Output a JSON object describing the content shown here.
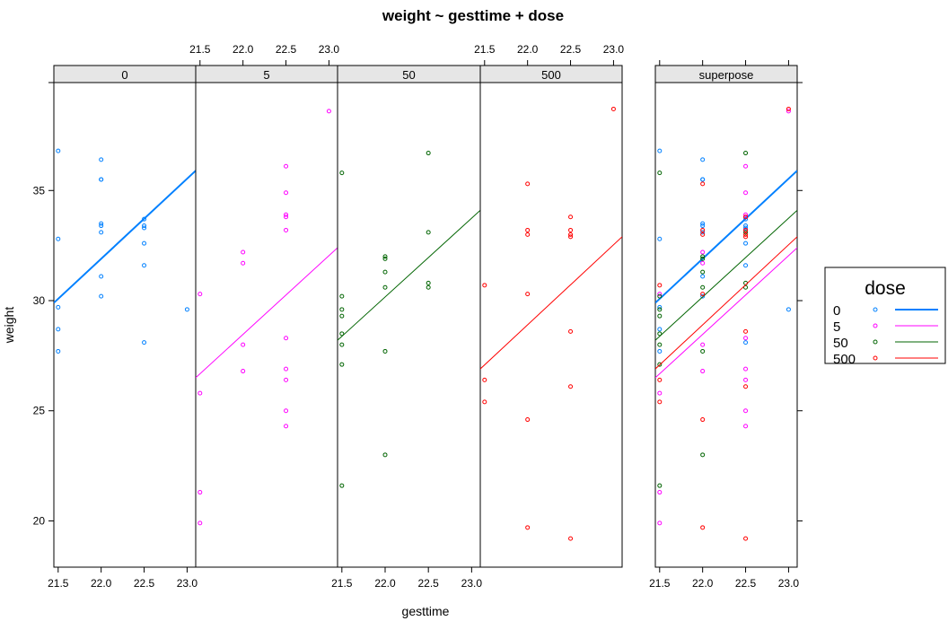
{
  "chart_data": {
    "type": "scatter",
    "title": "weight ~ gesttime + dose",
    "xlabel": "gesttime",
    "ylabel": "weight",
    "xlim": [
      21.45,
      23.1
    ],
    "ylim": [
      17.9,
      39.9
    ],
    "x_ticks": [
      21.5,
      22.0,
      22.5,
      23.0
    ],
    "x_tick_labels": [
      "21.5",
      "22.0",
      "22.5",
      "23.0"
    ],
    "y_ticks": [
      20,
      25,
      30,
      35
    ],
    "y_tick_labels": [
      "20",
      "25",
      "30",
      "35"
    ],
    "panels": [
      "0",
      "5",
      "50",
      "500"
    ],
    "superpose_label": "superpose",
    "legend": {
      "title": "dose",
      "position": "right"
    },
    "series": [
      {
        "name": "0",
        "color": "#0080ff",
        "line_width": 2,
        "fit": {
          "x": [
            21.45,
            23.1
          ],
          "y": [
            29.9,
            35.9
          ]
        },
        "points": [
          [
            21.5,
            36.8
          ],
          [
            21.5,
            32.8
          ],
          [
            21.5,
            29.7
          ],
          [
            21.5,
            28.7
          ],
          [
            21.5,
            27.7
          ],
          [
            22.0,
            36.4
          ],
          [
            22.0,
            35.5
          ],
          [
            22.0,
            35.5
          ],
          [
            22.0,
            33.5
          ],
          [
            22.0,
            33.4
          ],
          [
            22.0,
            33.1
          ],
          [
            22.0,
            31.1
          ],
          [
            22.0,
            30.2
          ],
          [
            22.5,
            33.7
          ],
          [
            22.5,
            33.4
          ],
          [
            22.5,
            33.3
          ],
          [
            22.5,
            32.6
          ],
          [
            22.5,
            31.6
          ],
          [
            22.5,
            28.1
          ],
          [
            23.0,
            29.6
          ]
        ]
      },
      {
        "name": "5",
        "color": "#ff00ff",
        "line_width": 1,
        "fit": {
          "x": [
            21.45,
            23.1
          ],
          "y": [
            26.5,
            32.4
          ]
        },
        "points": [
          [
            21.5,
            30.3
          ],
          [
            21.5,
            25.8
          ],
          [
            21.5,
            21.3
          ],
          [
            21.5,
            19.9
          ],
          [
            22.0,
            32.2
          ],
          [
            22.0,
            31.7
          ],
          [
            22.0,
            28.0
          ],
          [
            22.0,
            26.8
          ],
          [
            22.5,
            36.1
          ],
          [
            22.5,
            34.9
          ],
          [
            22.5,
            33.9
          ],
          [
            22.5,
            33.8
          ],
          [
            22.5,
            33.2
          ],
          [
            22.5,
            28.3
          ],
          [
            22.5,
            26.9
          ],
          [
            22.5,
            26.4
          ],
          [
            22.5,
            25.0
          ],
          [
            22.5,
            24.3
          ],
          [
            23.0,
            38.6
          ]
        ]
      },
      {
        "name": "50",
        "color": "#006400",
        "line_width": 1,
        "fit": {
          "x": [
            21.45,
            23.1
          ],
          "y": [
            28.2,
            34.1
          ]
        },
        "points": [
          [
            21.5,
            35.8
          ],
          [
            21.5,
            30.2
          ],
          [
            21.5,
            29.6
          ],
          [
            21.5,
            29.3
          ],
          [
            21.5,
            28.5
          ],
          [
            21.5,
            28.0
          ],
          [
            21.5,
            27.1
          ],
          [
            21.5,
            21.6
          ],
          [
            22.0,
            32.0
          ],
          [
            22.0,
            31.9
          ],
          [
            22.0,
            31.3
          ],
          [
            22.0,
            30.6
          ],
          [
            22.0,
            27.7
          ],
          [
            22.0,
            23.0
          ],
          [
            22.5,
            36.7
          ],
          [
            22.5,
            33.1
          ],
          [
            22.5,
            30.8
          ],
          [
            22.5,
            30.6
          ]
        ]
      },
      {
        "name": "500",
        "color": "#ff0000",
        "line_width": 1,
        "fit": {
          "x": [
            21.45,
            23.1
          ],
          "y": [
            26.9,
            32.9
          ]
        },
        "points": [
          [
            21.5,
            30.7
          ],
          [
            21.5,
            26.4
          ],
          [
            21.5,
            25.4
          ],
          [
            22.0,
            35.3
          ],
          [
            22.0,
            33.2
          ],
          [
            22.0,
            33.0
          ],
          [
            22.0,
            30.3
          ],
          [
            22.0,
            24.6
          ],
          [
            22.0,
            19.7
          ],
          [
            22.5,
            33.8
          ],
          [
            22.5,
            33.2
          ],
          [
            22.5,
            33.0
          ],
          [
            22.5,
            32.9
          ],
          [
            22.5,
            28.6
          ],
          [
            22.5,
            26.1
          ],
          [
            22.5,
            19.2
          ],
          [
            23.0,
            38.7
          ]
        ]
      }
    ]
  }
}
